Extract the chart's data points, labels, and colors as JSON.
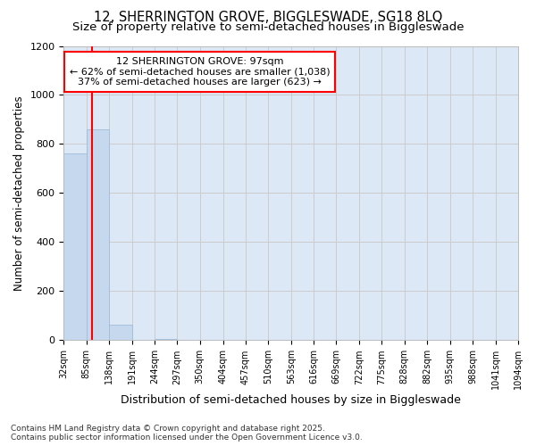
{
  "title_line1": "12, SHERRINGTON GROVE, BIGGLESWADE, SG18 8LQ",
  "title_line2": "Size of property relative to semi-detached houses in Biggleswade",
  "xlabel": "Distribution of semi-detached houses by size in Biggleswade",
  "ylabel": "Number of semi-detached properties",
  "bin_edges": [
    32,
    85,
    138,
    191,
    244,
    297,
    350,
    404,
    457,
    510,
    563,
    616,
    669,
    722,
    775,
    828,
    882,
    935,
    988,
    1041,
    1094
  ],
  "bar_heights": [
    760,
    860,
    65,
    3,
    5,
    2,
    2,
    2,
    1,
    1,
    1,
    1,
    0,
    0,
    0,
    0,
    0,
    0,
    0,
    0
  ],
  "bar_color": "#c5d8ee",
  "bar_edgecolor": "#a0bcd8",
  "property_size": 97,
  "vline_color": "red",
  "annotation_title": "12 SHERRINGTON GROVE: 97sqm",
  "annotation_line1": "← 62% of semi-detached houses are smaller (1,038)",
  "annotation_line2": "37% of semi-detached houses are larger (623) →",
  "annotation_box_color": "white",
  "annotation_box_edgecolor": "red",
  "ylim": [
    0,
    1200
  ],
  "yticks": [
    0,
    200,
    400,
    600,
    800,
    1000,
    1200
  ],
  "grid_color": "#cccccc",
  "background_color": "#dce8f5",
  "footer_line1": "Contains HM Land Registry data © Crown copyright and database right 2025.",
  "footer_line2": "Contains public sector information licensed under the Open Government Licence v3.0.",
  "title_fontsize": 10.5,
  "subtitle_fontsize": 9.5,
  "tick_fontsize": 7,
  "ylabel_fontsize": 8.5,
  "xlabel_fontsize": 9,
  "annotation_fontsize": 8,
  "footer_fontsize": 6.5
}
